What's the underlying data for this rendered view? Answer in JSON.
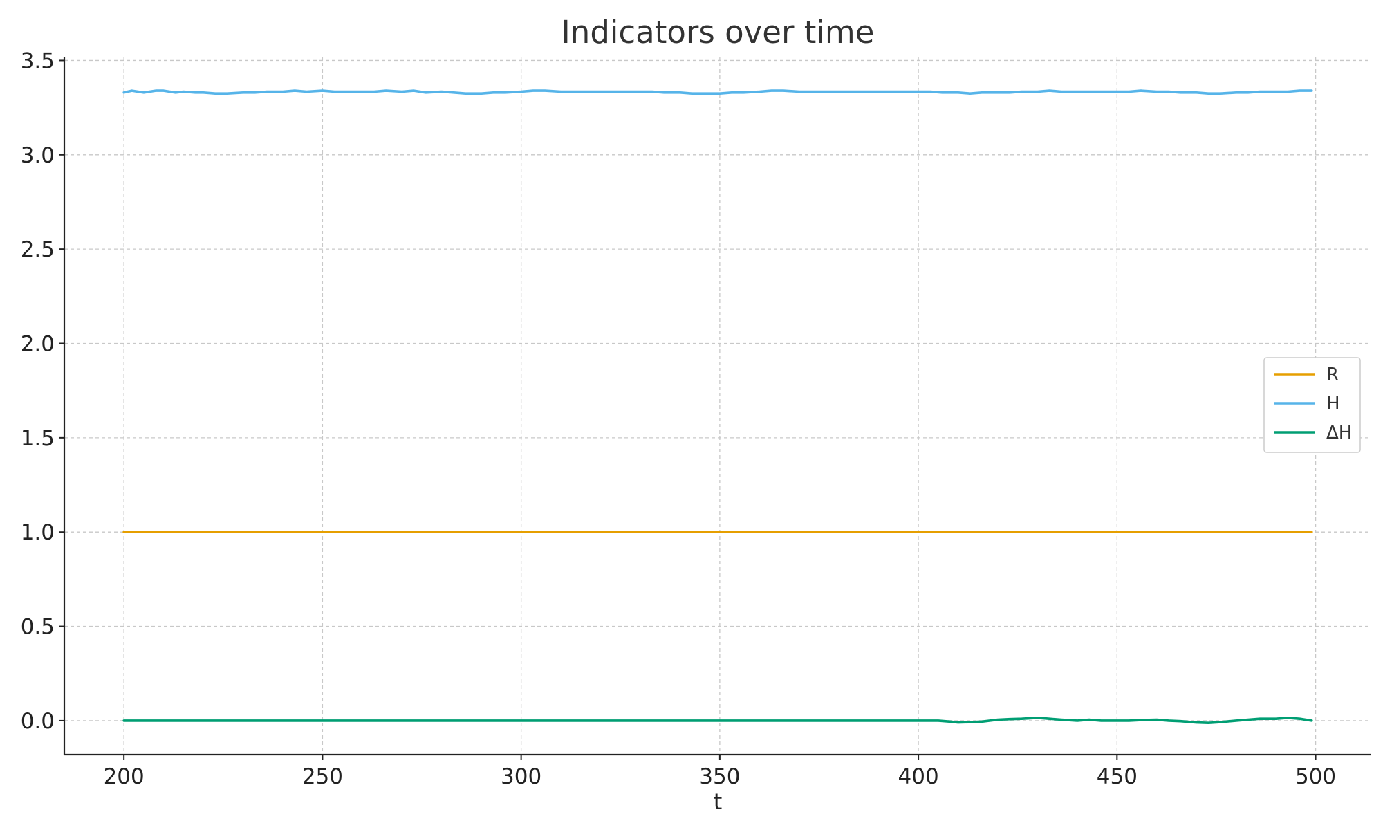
{
  "chart_data": {
    "type": "line",
    "title": "Indicators over time",
    "xlabel": "t",
    "ylabel": "",
    "xlim": [
      185,
      514
    ],
    "ylim": [
      -0.18,
      3.52
    ],
    "xticks": [
      200,
      250,
      300,
      350,
      400,
      450,
      500
    ],
    "xtick_labels": [
      "200",
      "250",
      "300",
      "350",
      "400",
      "450",
      "500"
    ],
    "yticks": [
      0.0,
      0.5,
      1.0,
      1.5,
      2.0,
      2.5,
      3.0,
      3.5
    ],
    "ytick_labels": [
      "0.0",
      "0.5",
      "1.0",
      "1.5",
      "2.0",
      "2.5",
      "3.0",
      "3.5"
    ],
    "grid": true,
    "legend_position": "right",
    "series": [
      {
        "name": "R",
        "color": "#E69F00",
        "x": [
          200,
          499
        ],
        "y": [
          1.0,
          1.0
        ]
      },
      {
        "name": "H",
        "color": "#56B4E9",
        "x": [
          200,
          202,
          205,
          208,
          210,
          213,
          215,
          218,
          220,
          223,
          226,
          230,
          233,
          236,
          240,
          243,
          246,
          250,
          253,
          256,
          260,
          263,
          266,
          270,
          273,
          276,
          280,
          283,
          286,
          290,
          293,
          296,
          300,
          303,
          306,
          310,
          313,
          316,
          320,
          323,
          326,
          330,
          333,
          336,
          340,
          343,
          346,
          350,
          353,
          356,
          360,
          363,
          366,
          370,
          373,
          376,
          380,
          383,
          386,
          390,
          393,
          396,
          400,
          403,
          406,
          410,
          413,
          416,
          420,
          423,
          426,
          430,
          433,
          436,
          440,
          443,
          446,
          450,
          453,
          456,
          460,
          463,
          466,
          470,
          473,
          476,
          480,
          483,
          486,
          490,
          493,
          496,
          499
        ],
        "y": [
          3.33,
          3.34,
          3.33,
          3.34,
          3.34,
          3.33,
          3.335,
          3.33,
          3.33,
          3.325,
          3.325,
          3.33,
          3.33,
          3.335,
          3.335,
          3.34,
          3.335,
          3.34,
          3.335,
          3.335,
          3.335,
          3.335,
          3.34,
          3.335,
          3.34,
          3.33,
          3.335,
          3.33,
          3.325,
          3.325,
          3.33,
          3.33,
          3.335,
          3.34,
          3.34,
          3.335,
          3.335,
          3.335,
          3.335,
          3.335,
          3.335,
          3.335,
          3.335,
          3.33,
          3.33,
          3.325,
          3.325,
          3.325,
          3.33,
          3.33,
          3.335,
          3.34,
          3.34,
          3.335,
          3.335,
          3.335,
          3.335,
          3.335,
          3.335,
          3.335,
          3.335,
          3.335,
          3.335,
          3.335,
          3.33,
          3.33,
          3.325,
          3.33,
          3.33,
          3.33,
          3.335,
          3.335,
          3.34,
          3.335,
          3.335,
          3.335,
          3.335,
          3.335,
          3.335,
          3.34,
          3.335,
          3.335,
          3.33,
          3.33,
          3.325,
          3.325,
          3.33,
          3.33,
          3.335,
          3.335,
          3.335,
          3.34,
          3.34
        ]
      },
      {
        "name": "ΔH",
        "color": "#009E73",
        "x": [
          200,
          400,
          402,
          405,
          408,
          410,
          413,
          416,
          420,
          423,
          426,
          430,
          433,
          436,
          440,
          443,
          446,
          450,
          453,
          456,
          460,
          463,
          466,
          470,
          473,
          476,
          480,
          483,
          486,
          490,
          493,
          496,
          499
        ],
        "y": [
          0.0,
          0.0,
          0.0,
          0.0,
          -0.005,
          -0.01,
          -0.008,
          -0.005,
          0.005,
          0.008,
          0.01,
          0.015,
          0.01,
          0.005,
          0.0,
          0.005,
          0.0,
          0.0,
          0.0,
          0.003,
          0.005,
          0.0,
          -0.003,
          -0.01,
          -0.012,
          -0.008,
          0.0,
          0.005,
          0.01,
          0.01,
          0.015,
          0.01,
          0.0
        ]
      }
    ]
  }
}
